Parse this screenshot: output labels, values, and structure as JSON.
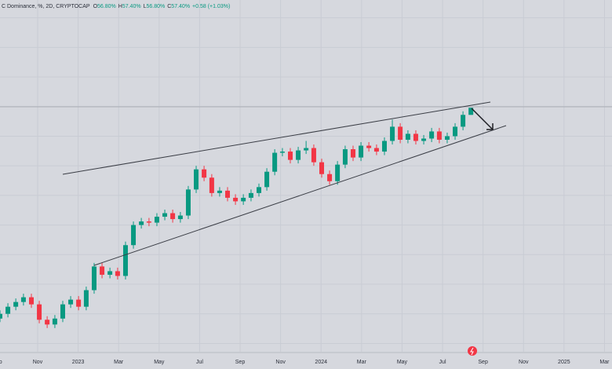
{
  "chart_data": {
    "type": "candlestick",
    "title": "C Dominance, %, 2D, CRYPTOCAP",
    "legend_fields": [
      {
        "key": "O",
        "text": "56.80%"
      },
      {
        "key": "H",
        "text": "57.40%"
      },
      {
        "key": "L",
        "text": "56.80%"
      },
      {
        "key": "C",
        "text": "57.40%"
      }
    ],
    "change": "+0.58 (+1.03%)",
    "up_color": "#089981",
    "down_color": "#f23645",
    "grid": true,
    "x": [
      0.14,
      0.53,
      0.92,
      1.3,
      1.69,
      2.08,
      2.47,
      2.85,
      3.24,
      3.63,
      4.02,
      4.4,
      4.79,
      5.18,
      5.57,
      5.95,
      6.34,
      6.73,
      7.12,
      7.5,
      7.89,
      8.28,
      8.67,
      9.05,
      9.44,
      9.83,
      10.22,
      10.6,
      10.99,
      11.38,
      11.77,
      12.16,
      12.54,
      12.93,
      13.32,
      13.71,
      14.09,
      14.48,
      14.87,
      15.26,
      15.64,
      16.03,
      16.42,
      16.81,
      17.19,
      17.58,
      17.97,
      18.36,
      18.74,
      19.13,
      19.52,
      19.91,
      20.29,
      20.68,
      21.07,
      21.46,
      21.84,
      22.23,
      22.62,
      23.01,
      23.4
    ],
    "open": [
      39.6,
      40.0,
      40.6,
      41.0,
      41.4,
      40.8,
      39.5,
      39.1,
      39.6,
      40.8,
      41.2,
      40.6,
      42.0,
      44.0,
      43.3,
      43.6,
      43.2,
      45.8,
      47.5,
      47.8,
      47.7,
      48.2,
      48.5,
      48.0,
      48.3,
      50.5,
      52.2,
      51.5,
      50.2,
      50.4,
      49.8,
      49.5,
      49.8,
      50.2,
      50.7,
      52.0,
      53.6,
      53.7,
      53.0,
      53.8,
      54.0,
      52.8,
      51.8,
      51.2,
      52.6,
      53.9,
      53.2,
      54.2,
      54.0,
      53.7,
      54.6,
      55.8,
      54.7,
      55.2,
      54.6,
      54.8,
      55.4,
      54.7,
      55.0,
      55.8,
      56.8
    ],
    "high": [
      40.3,
      40.9,
      41.3,
      41.7,
      41.7,
      41.1,
      39.8,
      39.9,
      41.1,
      41.5,
      41.5,
      42.3,
      44.3,
      44.3,
      43.9,
      43.9,
      46.1,
      47.8,
      48.1,
      48.1,
      48.5,
      48.8,
      48.8,
      48.6,
      50.8,
      52.5,
      52.5,
      51.8,
      50.7,
      50.7,
      50.1,
      50.1,
      50.5,
      51.0,
      52.3,
      53.9,
      54.0,
      54.0,
      54.1,
      54.6,
      54.3,
      53.1,
      52.1,
      52.9,
      54.2,
      54.2,
      54.5,
      54.5,
      54.3,
      54.9,
      56.4,
      56.1,
      55.5,
      55.5,
      55.1,
      55.7,
      55.7,
      55.3,
      56.1,
      57.1,
      57.4
    ],
    "low": [
      39.3,
      39.7,
      40.3,
      40.7,
      40.5,
      39.2,
      38.8,
      38.8,
      39.3,
      40.5,
      40.3,
      40.3,
      41.7,
      43.0,
      43.0,
      42.9,
      42.9,
      45.5,
      47.2,
      47.4,
      47.4,
      47.9,
      47.7,
      47.7,
      48.0,
      50.2,
      51.2,
      49.9,
      49.9,
      49.5,
      49.2,
      49.2,
      49.5,
      49.9,
      50.4,
      51.7,
      53.3,
      52.7,
      52.7,
      53.5,
      52.5,
      51.5,
      50.9,
      50.9,
      52.3,
      52.9,
      52.9,
      53.7,
      53.4,
      53.4,
      54.3,
      54.4,
      54.4,
      54.3,
      54.3,
      54.5,
      54.4,
      54.4,
      54.7,
      55.5,
      56.8
    ],
    "close": [
      40.0,
      40.6,
      41.0,
      41.4,
      40.8,
      39.5,
      39.1,
      39.6,
      40.8,
      41.2,
      40.6,
      42.0,
      44.0,
      43.3,
      43.6,
      43.2,
      45.8,
      47.5,
      47.8,
      47.7,
      48.2,
      48.5,
      48.0,
      48.3,
      50.5,
      52.2,
      51.5,
      50.2,
      50.4,
      49.8,
      49.5,
      49.8,
      50.2,
      50.7,
      52.0,
      53.6,
      53.7,
      53.0,
      53.8,
      54.0,
      52.8,
      51.8,
      51.2,
      52.6,
      53.9,
      53.2,
      54.2,
      54.0,
      53.7,
      54.6,
      55.8,
      54.7,
      55.2,
      54.6,
      54.8,
      55.4,
      54.7,
      55.0,
      55.8,
      56.8,
      57.4
    ],
    "xlim": [
      0.14,
      30.37
    ],
    "xticks": [
      {
        "value": 0,
        "label": "Sep"
      },
      {
        "value": 2,
        "label": "Nov"
      },
      {
        "value": 4,
        "label": "2023"
      },
      {
        "value": 6,
        "label": "Mar"
      },
      {
        "value": 8,
        "label": "May"
      },
      {
        "value": 10,
        "label": "Jul"
      },
      {
        "value": 12,
        "label": "Sep"
      },
      {
        "value": 14,
        "label": "Nov"
      },
      {
        "value": 16,
        "label": "2024"
      },
      {
        "value": 18,
        "label": "Mar"
      },
      {
        "value": 20,
        "label": "May"
      },
      {
        "value": 22,
        "label": "Jul"
      },
      {
        "value": 24,
        "label": "Sep"
      },
      {
        "value": 26,
        "label": "Nov"
      },
      {
        "value": 28,
        "label": "2025"
      },
      {
        "value": 30,
        "label": "Mar"
      }
    ],
    "ylim": [
      36.8,
      66.5
    ],
    "yticks": [
      37.5,
      40,
      42.5,
      45,
      47.5,
      50,
      52.5,
      55,
      57.5,
      60,
      62.5,
      65
    ]
  }
}
